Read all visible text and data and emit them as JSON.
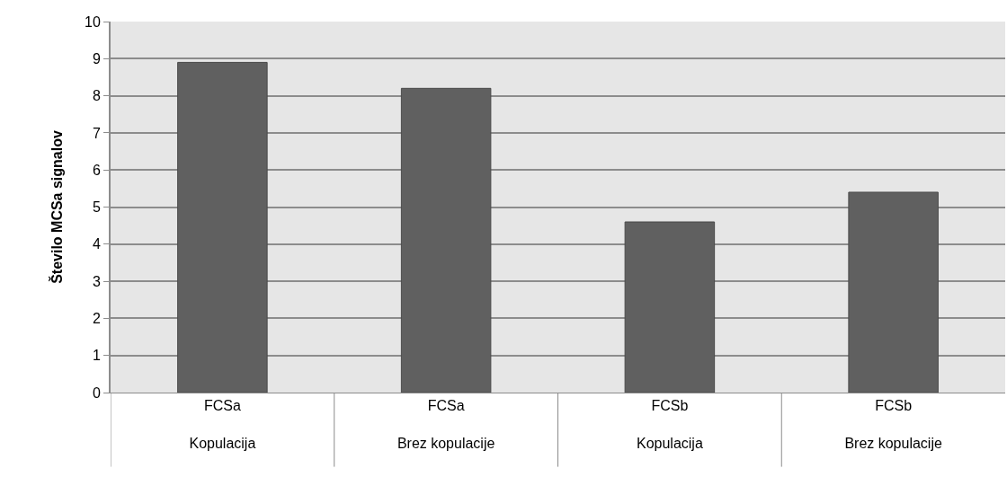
{
  "chart_data": {
    "type": "bar",
    "ylabel": "Število MCSa signalov",
    "categories": [
      "FCSa\nKopulacija",
      "FCSa\nBrez kopulacije",
      "FCSb\nKopulacija",
      "FCSb\nBrez kopulacije"
    ],
    "values": [
      8.9,
      8.2,
      4.6,
      5.4
    ],
    "color": "#606060",
    "ylim": [
      0,
      10
    ],
    "yticks": [
      0,
      1,
      2,
      3,
      4,
      5,
      6,
      7,
      8,
      9,
      10
    ],
    "grid": "y"
  }
}
